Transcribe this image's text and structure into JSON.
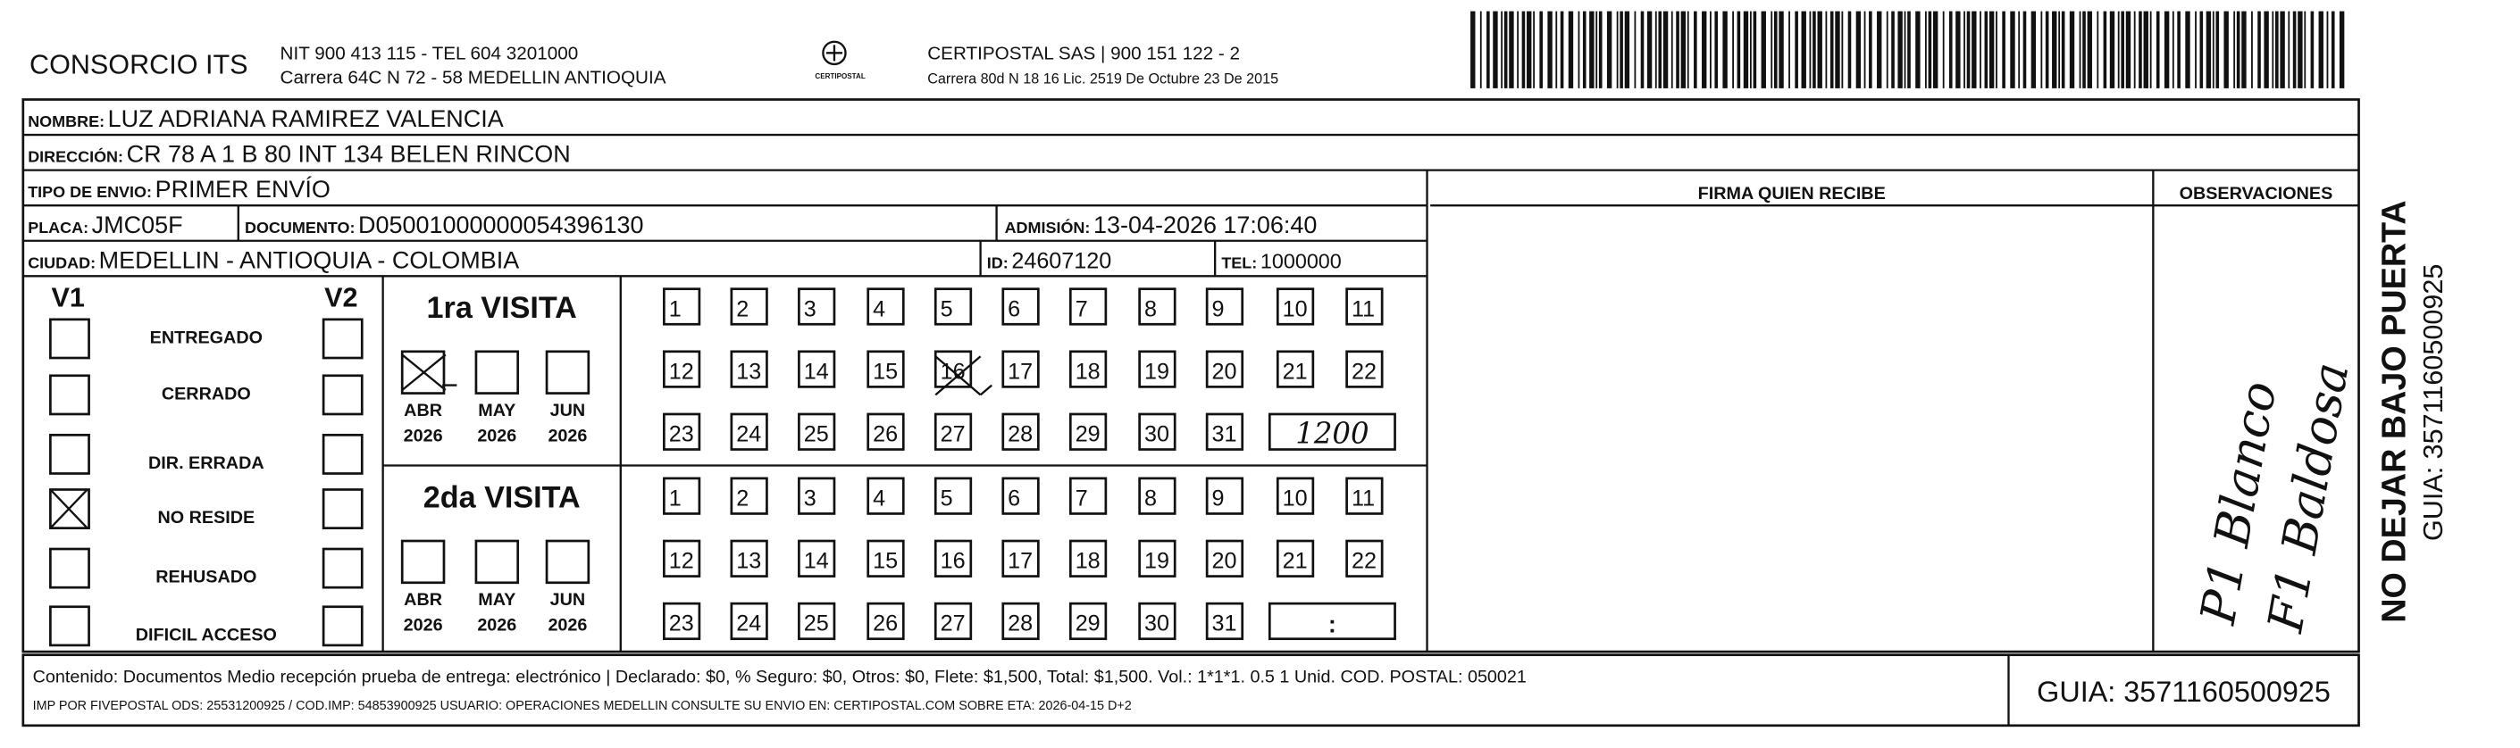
{
  "header": {
    "company": "CONSORCIO ITS",
    "nit": "NIT 900 413 115 - TEL 604 3201000",
    "address": "Carrera 64C N 72 - 58 MEDELLIN ANTIOQUIA",
    "logo": "CERTIPOSTAL",
    "carrier": "CERTIPOSTAL SAS | 900 151 122 - 2",
    "license": "Carrera 80d N 18 16 Lic. 2519 De Octubre 23 De 2015"
  },
  "fields": {
    "nombre": {
      "label": "NOMBRE:",
      "value": "LUZ ADRIANA RAMIREZ VALENCIA"
    },
    "direccion": {
      "label": "DIRECCIÓN:",
      "value": "CR 78 A 1 B 80 INT 134 BELEN RINCON"
    },
    "tipo": {
      "label": "TIPO DE ENVIO:",
      "value": "PRIMER ENVÍO"
    },
    "placa": {
      "label": "PLACA:",
      "value": "JMC05F"
    },
    "documento": {
      "label": "DOCUMENTO:",
      "value": "D05001000000054396130"
    },
    "admision": {
      "label": "ADMISIÓN:",
      "value": "13-04-2026 17:06:40"
    },
    "ciudad": {
      "label": "CIUDAD:",
      "value": "MEDELLIN - ANTIOQUIA - COLOMBIA"
    },
    "id": {
      "label": "ID:",
      "value": "24607120"
    },
    "tel": {
      "label": "TEL:",
      "value": "1000000"
    }
  },
  "columns": {
    "firma": "FIRMA QUIEN RECIBE",
    "observaciones": "OBSERVACIONES"
  },
  "status": {
    "v1": "V1",
    "v2": "V2",
    "options": [
      "ENTREGADO",
      "CERRADO",
      "DIR. ERRADA",
      "NO RESIDE",
      "REHUSADO",
      "DIFICIL ACCESO"
    ]
  },
  "visits": [
    {
      "title": "1ra VISITA",
      "months": [
        "ABR",
        "MAY",
        "JUN"
      ],
      "years": [
        "2026",
        "2026",
        "2026"
      ],
      "days": [
        "1",
        "2",
        "3",
        "4",
        "5",
        "6",
        "7",
        "8",
        "9",
        "10",
        "11",
        "12",
        "13",
        "14",
        "15",
        "16",
        "17",
        "18",
        "19",
        "20",
        "21",
        "22",
        "23",
        "24",
        "25",
        "26",
        "27",
        "28",
        "29",
        "30",
        "31"
      ],
      "time": "1200"
    },
    {
      "title": "2da VISITA",
      "months": [
        "ABR",
        "MAY",
        "JUN"
      ],
      "years": [
        "2026",
        "2026",
        "2026"
      ],
      "days": [
        "1",
        "2",
        "3",
        "4",
        "5",
        "6",
        "7",
        "8",
        "9",
        "10",
        "11",
        "12",
        "13",
        "14",
        "15",
        "16",
        "17",
        "18",
        "19",
        "20",
        "21",
        "22",
        "23",
        "24",
        "25",
        "26",
        "27",
        "28",
        "29",
        "30",
        "31"
      ],
      "time": ":"
    }
  ],
  "handwriting": [
    "P1 Blanco",
    "F1 Baldosa"
  ],
  "side": {
    "warning": "NO DEJAR BAJO PUERTA",
    "guia": "GUIA: 3571160500925"
  },
  "footer": {
    "content": "Contenido: Documentos Medio recepción prueba de entrega: electrónico | Declarado: $0, % Seguro: $0, Otros: $0, Flete: $1,500, Total: $1,500. Vol.: 1*1*1. 0.5  1 Unid. COD. POSTAL: 050021",
    "imp": "IMP POR FIVEPOSTAL ODS: 25531200925 / COD.IMP: 54853900925 USUARIO: OPERACIONES MEDELLIN CONSULTE SU ENVIO EN: CERTIPOSTAL.COM SOBRE ETA: 2026-04-15 D+2",
    "guia": "GUIA: 3571160500925"
  }
}
